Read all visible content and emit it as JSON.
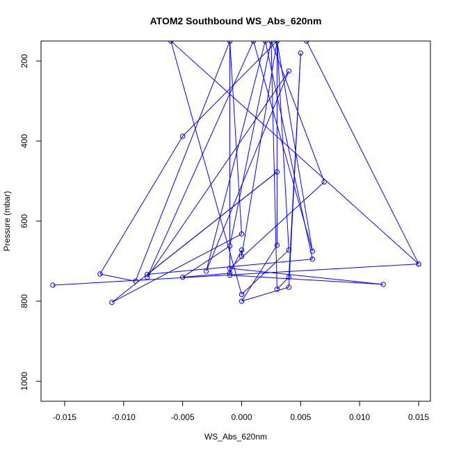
{
  "chart_data": {
    "type": "line",
    "title": "ATOM2 Southbound WS_Abs_620nm",
    "xlabel": "WS_Abs_620nm",
    "ylabel": "Pressure (mbar)",
    "xlim": [
      -0.017,
      0.016
    ],
    "ylim": [
      1050,
      150
    ],
    "y_reversed": true,
    "grid": false,
    "legend": "none",
    "color": "#0000ff",
    "x_ticks": [
      -0.015,
      -0.01,
      -0.005,
      0.0,
      0.005,
      0.01,
      0.015
    ],
    "x_tick_labels": [
      "-0.015",
      "-0.010",
      "-0.005",
      "0.000",
      "0.005",
      "0.010",
      "0.015"
    ],
    "y_ticks": [
      200,
      400,
      600,
      800,
      1000
    ],
    "y_tick_labels": [
      "200",
      "400",
      "600",
      "800",
      "1000"
    ],
    "points": [
      {
        "x": -0.016,
        "y": 760
      },
      {
        "x": 0.015,
        "y": 707
      },
      {
        "x": 0.0055,
        "y": 150
      },
      {
        "x": -0.001,
        "y": 150
      },
      {
        "x": -0.001,
        "y": 735
      },
      {
        "x": 0.012,
        "y": 758
      },
      {
        "x": -0.001,
        "y": 718
      },
      {
        "x": 0.007,
        "y": 502
      },
      {
        "x": 0.0025,
        "y": 150
      },
      {
        "x": 0.003,
        "y": 770
      },
      {
        "x": 0.004,
        "y": 740
      },
      {
        "x": 0.005,
        "y": 180
      },
      {
        "x": 0.004,
        "y": 765
      },
      {
        "x": 0.0,
        "y": 800
      },
      {
        "x": 0.003,
        "y": 660
      },
      {
        "x": 0.003,
        "y": 150
      },
      {
        "x": 0.006,
        "y": 675
      },
      {
        "x": 0.001,
        "y": 150
      },
      {
        "x": -0.008,
        "y": 740
      },
      {
        "x": 0.004,
        "y": 225
      },
      {
        "x": -0.003,
        "y": 725
      },
      {
        "x": 0.002,
        "y": 150
      },
      {
        "x": 0.006,
        "y": 695
      },
      {
        "x": -0.008,
        "y": 733
      },
      {
        "x": 0.003,
        "y": 477
      },
      {
        "x": -0.011,
        "y": 803
      },
      {
        "x": 0.0,
        "y": 632
      },
      {
        "x": -0.001,
        "y": 150
      },
      {
        "x": -0.009,
        "y": 750
      },
      {
        "x": -0.012,
        "y": 732
      },
      {
        "x": -0.005,
        "y": 388
      },
      {
        "x": 0.003,
        "y": 150
      },
      {
        "x": 0.0025,
        "y": 150
      },
      {
        "x": -0.001,
        "y": 662
      },
      {
        "x": -0.005,
        "y": 740
      },
      {
        "x": -0.001,
        "y": 730
      },
      {
        "x": 0.0,
        "y": 672
      },
      {
        "x": 0.0,
        "y": 688
      },
      {
        "x": 0.003,
        "y": 150
      },
      {
        "x": 0.004,
        "y": 672
      },
      {
        "x": 0.0,
        "y": 783
      },
      {
        "x": -0.006,
        "y": 150
      },
      {
        "x": 0.015,
        "y": 707
      }
    ]
  }
}
